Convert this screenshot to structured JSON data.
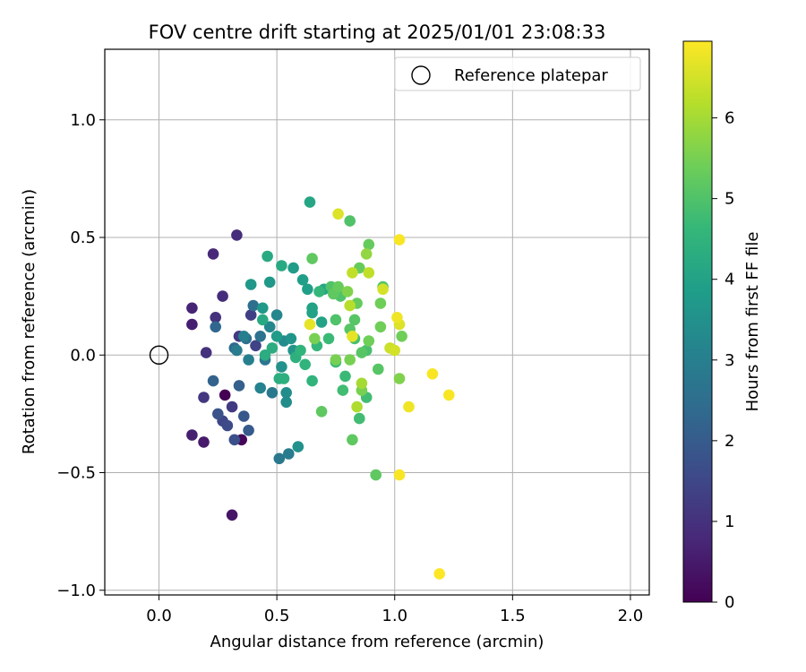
{
  "chart_data": {
    "type": "scatter",
    "title": "FOV centre drift starting at 2025/01/01 23:08:33",
    "xlabel": "Angular distance from reference (arcmin)",
    "ylabel": "Rotation from reference (arcmin)",
    "xlim": [
      -0.23,
      2.08
    ],
    "ylim": [
      -1.02,
      1.3
    ],
    "grid": true,
    "x_ticks": [
      0.0,
      0.5,
      1.0,
      1.5,
      2.0
    ],
    "x_tick_labels": [
      "0.0",
      "0.5",
      "1.0",
      "1.5",
      "2.0"
    ],
    "y_ticks": [
      -1.0,
      -0.5,
      0.0,
      0.5,
      1.0
    ],
    "y_tick_labels": [
      "−1.0",
      "−0.5",
      "0.0",
      "0.5",
      "1.0"
    ],
    "legend": {
      "position": "top-right",
      "entries": [
        "Reference platepar"
      ]
    },
    "reference_point": {
      "x": 0.0,
      "y": 0.0,
      "label": "Reference platepar"
    },
    "colorbar": {
      "label": "Hours from first FF file",
      "colormap": "viridis",
      "range": [
        0,
        6.95
      ],
      "ticks": [
        0,
        1,
        2,
        3,
        4,
        5,
        6
      ],
      "tick_labels": [
        "0",
        "1",
        "2",
        "3",
        "4",
        "5",
        "6"
      ],
      "colors": [
        "#440154",
        "#482878",
        "#3e4989",
        "#31688e",
        "#26828e",
        "#1f9e89",
        "#35b779",
        "#6ece58",
        "#b5de2b",
        "#fde725"
      ]
    },
    "points": [
      {
        "x": 0.28,
        "y": -0.17,
        "c": 0.0
      },
      {
        "x": 0.35,
        "y": -0.36,
        "c": 0.1
      },
      {
        "x": 0.31,
        "y": -0.68,
        "c": 0.4
      },
      {
        "x": 0.19,
        "y": -0.37,
        "c": 0.5
      },
      {
        "x": 0.14,
        "y": -0.34,
        "c": 0.6
      },
      {
        "x": 0.14,
        "y": 0.13,
        "c": 0.6
      },
      {
        "x": 0.14,
        "y": 0.2,
        "c": 0.7
      },
      {
        "x": 0.23,
        "y": 0.43,
        "c": 0.8
      },
      {
        "x": 0.33,
        "y": 0.51,
        "c": 0.9
      },
      {
        "x": 0.27,
        "y": 0.25,
        "c": 0.9
      },
      {
        "x": 0.24,
        "y": 0.16,
        "c": 1.0
      },
      {
        "x": 0.2,
        "y": 0.01,
        "c": 1.0
      },
      {
        "x": 0.19,
        "y": -0.18,
        "c": 1.1
      },
      {
        "x": 0.31,
        "y": -0.22,
        "c": 1.2
      },
      {
        "x": 0.34,
        "y": 0.08,
        "c": 1.2
      },
      {
        "x": 0.39,
        "y": 0.17,
        "c": 1.3
      },
      {
        "x": 0.41,
        "y": 0.04,
        "c": 1.4
      },
      {
        "x": 0.27,
        "y": -0.28,
        "c": 1.5
      },
      {
        "x": 0.29,
        "y": -0.3,
        "c": 1.6
      },
      {
        "x": 0.32,
        "y": -0.36,
        "c": 1.7
      },
      {
        "x": 0.25,
        "y": -0.25,
        "c": 1.8
      },
      {
        "x": 0.36,
        "y": -0.26,
        "c": 1.9
      },
      {
        "x": 0.38,
        "y": -0.32,
        "c": 2.0
      },
      {
        "x": 0.34,
        "y": -0.13,
        "c": 2.1
      },
      {
        "x": 0.23,
        "y": -0.11,
        "c": 2.2
      },
      {
        "x": 0.24,
        "y": 0.12,
        "c": 2.3
      },
      {
        "x": 0.32,
        "y": 0.03,
        "c": 2.4
      },
      {
        "x": 0.37,
        "y": 0.07,
        "c": 2.5
      },
      {
        "x": 0.4,
        "y": 0.21,
        "c": 2.5
      },
      {
        "x": 0.43,
        "y": 0.08,
        "c": 2.6
      },
      {
        "x": 0.45,
        "y": -0.02,
        "c": 2.7
      },
      {
        "x": 0.48,
        "y": -0.16,
        "c": 2.8
      },
      {
        "x": 0.51,
        "y": -0.44,
        "c": 2.8
      },
      {
        "x": 0.55,
        "y": -0.42,
        "c": 2.9
      },
      {
        "x": 0.33,
        "y": 0.02,
        "c": 2.9
      },
      {
        "x": 0.36,
        "y": 0.08,
        "c": 3.0
      },
      {
        "x": 0.38,
        "y": -0.02,
        "c": 3.0
      },
      {
        "x": 0.43,
        "y": -0.14,
        "c": 3.1
      },
      {
        "x": 0.47,
        "y": 0.12,
        "c": 3.2
      },
      {
        "x": 0.5,
        "y": 0.17,
        "c": 3.2
      },
      {
        "x": 0.53,
        "y": 0.06,
        "c": 3.3
      },
      {
        "x": 0.54,
        "y": -0.16,
        "c": 3.4
      },
      {
        "x": 0.54,
        "y": -0.2,
        "c": 3.4
      },
      {
        "x": 0.59,
        "y": -0.39,
        "c": 3.5
      },
      {
        "x": 0.52,
        "y": -0.05,
        "c": 3.5
      },
      {
        "x": 0.57,
        "y": 0.02,
        "c": 3.6
      },
      {
        "x": 0.56,
        "y": 0.07,
        "c": 3.6
      },
      {
        "x": 0.39,
        "y": 0.3,
        "c": 3.7
      },
      {
        "x": 0.44,
        "y": 0.2,
        "c": 3.7
      },
      {
        "x": 0.47,
        "y": 0.31,
        "c": 3.7
      },
      {
        "x": 0.5,
        "y": 0.08,
        "c": 3.8
      },
      {
        "x": 0.57,
        "y": 0.37,
        "c": 3.8
      },
      {
        "x": 0.61,
        "y": 0.32,
        "c": 3.9
      },
      {
        "x": 0.63,
        "y": 0.28,
        "c": 3.9
      },
      {
        "x": 0.65,
        "y": 0.18,
        "c": 4.0
      },
      {
        "x": 0.65,
        "y": 0.2,
        "c": 4.0
      },
      {
        "x": 0.69,
        "y": 0.14,
        "c": 4.0
      },
      {
        "x": 0.7,
        "y": 0.28,
        "c": 4.1
      },
      {
        "x": 0.64,
        "y": 0.65,
        "c": 4.1
      },
      {
        "x": 0.46,
        "y": 0.42,
        "c": 4.2
      },
      {
        "x": 0.52,
        "y": 0.38,
        "c": 4.2
      },
      {
        "x": 0.44,
        "y": 0.15,
        "c": 4.2
      },
      {
        "x": 0.48,
        "y": 0.03,
        "c": 4.3
      },
      {
        "x": 0.45,
        "y": 0.0,
        "c": 4.3
      },
      {
        "x": 0.51,
        "y": -0.1,
        "c": 4.3
      },
      {
        "x": 0.53,
        "y": -0.1,
        "c": 4.4
      },
      {
        "x": 0.58,
        "y": -0.01,
        "c": 4.4
      },
      {
        "x": 0.6,
        "y": 0.02,
        "c": 4.5
      },
      {
        "x": 0.62,
        "y": -0.04,
        "c": 4.5
      },
      {
        "x": 0.65,
        "y": -0.11,
        "c": 4.5
      },
      {
        "x": 0.67,
        "y": 0.04,
        "c": 4.6
      },
      {
        "x": 0.68,
        "y": 0.27,
        "c": 4.6
      },
      {
        "x": 0.72,
        "y": 0.07,
        "c": 4.7
      },
      {
        "x": 0.75,
        "y": -0.03,
        "c": 4.7
      },
      {
        "x": 0.79,
        "y": -0.09,
        "c": 4.7
      },
      {
        "x": 0.78,
        "y": -0.15,
        "c": 4.8
      },
      {
        "x": 0.85,
        "y": -0.27,
        "c": 4.8
      },
      {
        "x": 0.88,
        "y": -0.18,
        "c": 4.8
      },
      {
        "x": 0.88,
        "y": 0.02,
        "c": 4.9
      },
      {
        "x": 0.83,
        "y": 0.07,
        "c": 4.9
      },
      {
        "x": 0.81,
        "y": 0.57,
        "c": 5.0
      },
      {
        "x": 0.73,
        "y": 0.29,
        "c": 5.0
      },
      {
        "x": 0.75,
        "y": 0.15,
        "c": 5.0
      },
      {
        "x": 0.77,
        "y": 0.25,
        "c": 5.0
      },
      {
        "x": 0.81,
        "y": 0.11,
        "c": 5.1
      },
      {
        "x": 0.83,
        "y": 0.15,
        "c": 5.1
      },
      {
        "x": 0.86,
        "y": 0.01,
        "c": 5.1
      },
      {
        "x": 0.93,
        "y": -0.06,
        "c": 5.1
      },
      {
        "x": 0.95,
        "y": 0.29,
        "c": 5.1
      },
      {
        "x": 0.92,
        "y": -0.51,
        "c": 5.2
      },
      {
        "x": 0.82,
        "y": -0.36,
        "c": 5.2
      },
      {
        "x": 0.69,
        "y": -0.24,
        "c": 5.2
      },
      {
        "x": 0.65,
        "y": 0.41,
        "c": 5.2
      },
      {
        "x": 0.74,
        "y": 0.26,
        "c": 5.2
      },
      {
        "x": 0.85,
        "y": 0.37,
        "c": 5.3
      },
      {
        "x": 0.89,
        "y": 0.47,
        "c": 5.3
      },
      {
        "x": 0.76,
        "y": 0.29,
        "c": 5.3
      },
      {
        "x": 0.84,
        "y": 0.22,
        "c": 5.3
      },
      {
        "x": 0.94,
        "y": 0.12,
        "c": 5.4
      },
      {
        "x": 0.89,
        "y": 0.06,
        "c": 5.4
      },
      {
        "x": 0.94,
        "y": 0.22,
        "c": 5.4
      },
      {
        "x": 1.03,
        "y": 0.08,
        "c": 5.4
      },
      {
        "x": 0.81,
        "y": -0.02,
        "c": 5.5
      },
      {
        "x": 0.66,
        "y": 0.07,
        "c": 5.5
      },
      {
        "x": 0.75,
        "y": -0.02,
        "c": 5.5
      },
      {
        "x": 0.86,
        "y": -0.15,
        "c": 5.5
      },
      {
        "x": 1.02,
        "y": -0.1,
        "c": 5.6
      },
      {
        "x": 0.8,
        "y": 0.27,
        "c": 5.6
      },
      {
        "x": 0.88,
        "y": 0.43,
        "c": 5.8
      },
      {
        "x": 0.86,
        "y": -0.12,
        "c": 6.0
      },
      {
        "x": 0.84,
        "y": -0.22,
        "c": 6.1
      },
      {
        "x": 0.81,
        "y": 0.21,
        "c": 6.2
      },
      {
        "x": 0.82,
        "y": 0.35,
        "c": 6.3
      },
      {
        "x": 0.89,
        "y": 0.35,
        "c": 6.3
      },
      {
        "x": 0.98,
        "y": 0.03,
        "c": 6.4
      },
      {
        "x": 0.95,
        "y": 0.28,
        "c": 6.5
      },
      {
        "x": 1.0,
        "y": 0.02,
        "c": 6.5
      },
      {
        "x": 0.76,
        "y": 0.6,
        "c": 6.6
      },
      {
        "x": 1.02,
        "y": 0.13,
        "c": 6.6
      },
      {
        "x": 0.64,
        "y": 0.13,
        "c": 6.7
      },
      {
        "x": 0.82,
        "y": 0.08,
        "c": 6.7
      },
      {
        "x": 1.06,
        "y": -0.22,
        "c": 6.8
      },
      {
        "x": 1.01,
        "y": 0.16,
        "c": 6.8
      },
      {
        "x": 1.02,
        "y": 0.49,
        "c": 6.9
      },
      {
        "x": 1.02,
        "y": -0.51,
        "c": 6.9
      },
      {
        "x": 1.16,
        "y": -0.08,
        "c": 6.9
      },
      {
        "x": 1.23,
        "y": -0.17,
        "c": 6.9
      },
      {
        "x": 1.19,
        "y": -0.93,
        "c": 6.95
      }
    ]
  }
}
